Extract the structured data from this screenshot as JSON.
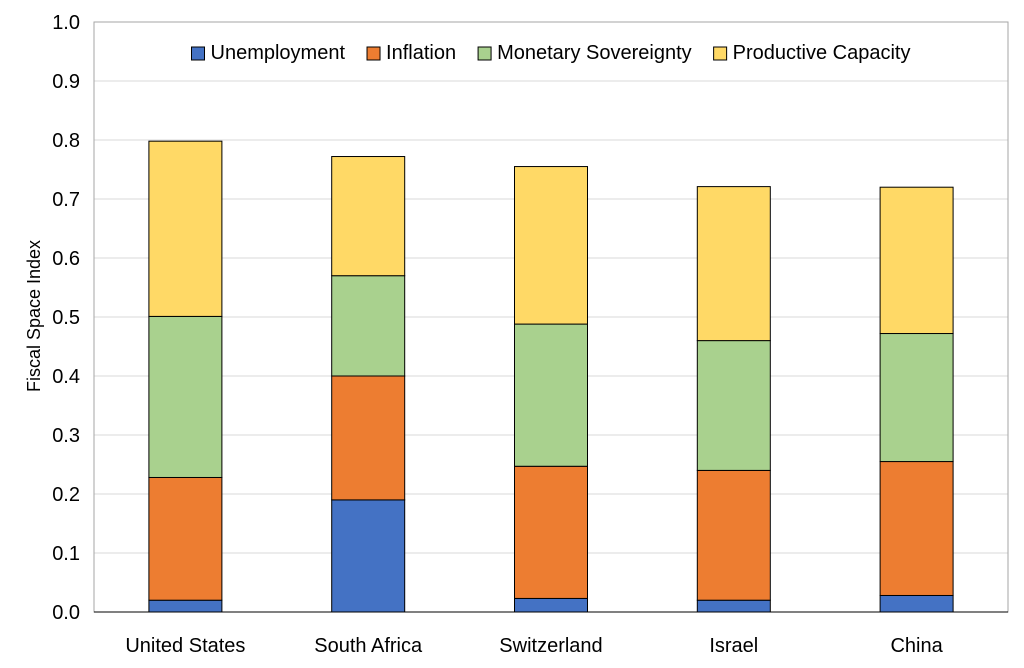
{
  "chart_data": {
    "type": "bar",
    "stacked": true,
    "title": "",
    "xlabel": "",
    "ylabel": "Fiscal Space Index",
    "ylim": [
      0,
      1.0
    ],
    "ytick_values": [
      0.0,
      0.1,
      0.2,
      0.3,
      0.4,
      0.5,
      0.6,
      0.7,
      0.8,
      0.9,
      1.0
    ],
    "ytick_labels": [
      "0.0",
      "0.1",
      "0.2",
      "0.3",
      "0.4",
      "0.5",
      "0.6",
      "0.7",
      "0.8",
      "0.9",
      "1.0"
    ],
    "grid": true,
    "legend_position": "top",
    "categories": [
      "United States",
      "South Africa",
      "Switzerland",
      "Israel",
      "China"
    ],
    "series": [
      {
        "name": "Unemployment",
        "color": "#4472c4",
        "values": [
          0.02,
          0.19,
          0.023,
          0.02,
          0.028
        ]
      },
      {
        "name": "Inflation",
        "color": "#ed7d31",
        "values": [
          0.208,
          0.21,
          0.224,
          0.22,
          0.227
        ]
      },
      {
        "name": "Monetary Sovereignty",
        "color": "#a9d18e",
        "values": [
          0.273,
          0.17,
          0.241,
          0.22,
          0.217
        ]
      },
      {
        "name": "Productive Capacity",
        "color": "#ffd966",
        "values": [
          0.297,
          0.202,
          0.267,
          0.261,
          0.248
        ]
      }
    ]
  }
}
